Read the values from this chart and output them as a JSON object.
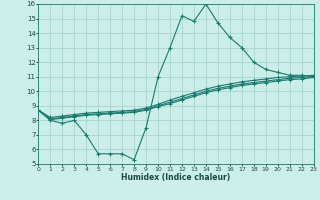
{
  "xlabel": "Humidex (Indice chaleur)",
  "background_color": "#cceee8",
  "grid_color": "#aad4ce",
  "line_color": "#1a7a6e",
  "xlim": [
    0,
    23
  ],
  "ylim": [
    5,
    16
  ],
  "xticks": [
    0,
    1,
    2,
    3,
    4,
    5,
    6,
    7,
    8,
    9,
    10,
    11,
    12,
    13,
    14,
    15,
    16,
    17,
    18,
    19,
    20,
    21,
    22,
    23
  ],
  "yticks": [
    5,
    6,
    7,
    8,
    9,
    10,
    11,
    12,
    13,
    14,
    15,
    16
  ],
  "series1_x": [
    0,
    1,
    2,
    3,
    4,
    5,
    6,
    7,
    8,
    9,
    10,
    11,
    12,
    13,
    14,
    15,
    16,
    17,
    18,
    19,
    20,
    21,
    22,
    23
  ],
  "series1_y": [
    8.7,
    8.0,
    7.8,
    8.0,
    7.0,
    5.7,
    5.7,
    5.7,
    5.3,
    7.5,
    11.0,
    13.0,
    15.2,
    14.8,
    16.0,
    14.7,
    13.7,
    13.0,
    12.0,
    11.5,
    11.3,
    11.1,
    11.1,
    11.0
  ],
  "series2_x": [
    0,
    1,
    2,
    3,
    4,
    5,
    6,
    7,
    8,
    9,
    10,
    11,
    12,
    13,
    14,
    15,
    16,
    17,
    18,
    19,
    20,
    21,
    22,
    23
  ],
  "series2_y": [
    8.7,
    8.2,
    8.3,
    8.4,
    8.5,
    8.55,
    8.6,
    8.65,
    8.7,
    8.85,
    9.1,
    9.4,
    9.65,
    9.9,
    10.15,
    10.35,
    10.5,
    10.65,
    10.75,
    10.85,
    10.95,
    11.0,
    11.05,
    11.1
  ],
  "series3_x": [
    0,
    1,
    2,
    3,
    4,
    5,
    6,
    7,
    8,
    9,
    10,
    11,
    12,
    13,
    14,
    15,
    16,
    17,
    18,
    19,
    20,
    21,
    22,
    23
  ],
  "series3_y": [
    8.7,
    8.1,
    8.2,
    8.3,
    8.4,
    8.45,
    8.5,
    8.55,
    8.6,
    8.75,
    9.0,
    9.25,
    9.5,
    9.75,
    10.0,
    10.2,
    10.35,
    10.5,
    10.6,
    10.7,
    10.8,
    10.9,
    10.95,
    11.0
  ],
  "series4_x": [
    0,
    1,
    2,
    3,
    4,
    5,
    6,
    7,
    8,
    9,
    10,
    11,
    12,
    13,
    14,
    15,
    16,
    17,
    18,
    19,
    20,
    21,
    22,
    23
  ],
  "series4_y": [
    8.7,
    8.05,
    8.15,
    8.25,
    8.35,
    8.4,
    8.45,
    8.5,
    8.55,
    8.7,
    8.95,
    9.15,
    9.4,
    9.65,
    9.9,
    10.1,
    10.25,
    10.4,
    10.5,
    10.6,
    10.7,
    10.8,
    10.85,
    10.95
  ]
}
